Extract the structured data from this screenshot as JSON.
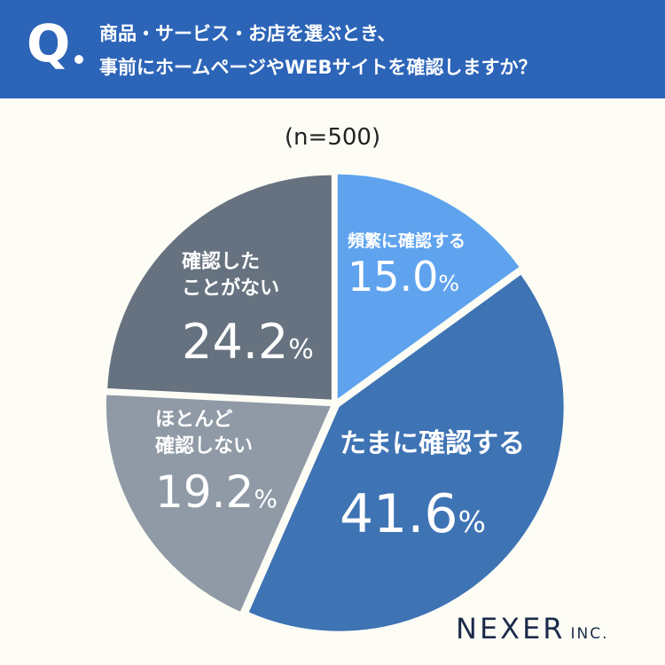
{
  "question": {
    "mark": "Q",
    "line1": "商品・サービス・お店を選ぶとき、",
    "line2": "事前にホームページやWEBサイトを確認しますか？"
  },
  "sample_size": "(n=500)",
  "logo": {
    "main": "NEXER",
    "sub": "INC."
  },
  "chart_data": {
    "type": "pie",
    "start_angle_deg": 0,
    "direction": "clockwise",
    "slices": [
      {
        "label_lines": [
          "頻繁に確認する"
        ],
        "value": 15.0,
        "pct_text": "15.0",
        "color": "#5fa3ef"
      },
      {
        "label_lines": [
          "たまに確認する"
        ],
        "value": 41.6,
        "pct_text": "41.6",
        "color": "#3e73b4"
      },
      {
        "label_lines": [
          "ほとんど",
          "確認しない"
        ],
        "value": 19.2,
        "pct_text": "19.2",
        "color": "#8f9aa6"
      },
      {
        "label_lines": [
          "確認した",
          "ことがない"
        ],
        "value": 24.2,
        "pct_text": "24.2",
        "color": "#66727f"
      }
    ],
    "percent_symbol": "%"
  }
}
